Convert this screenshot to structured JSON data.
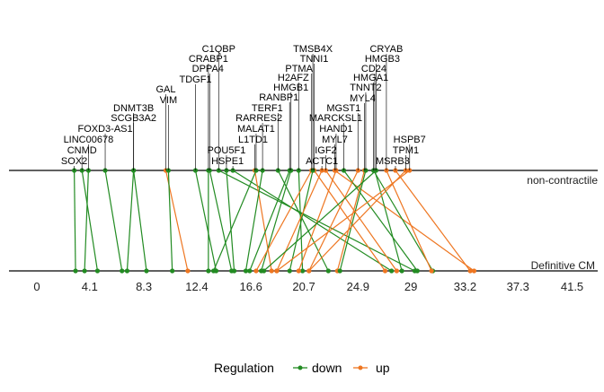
{
  "chart_data": {
    "type": "scatter",
    "title": "",
    "xlabel": "",
    "ylabel": "",
    "xlim": [
      0,
      44
    ],
    "x_ticks": [
      "0",
      "4.1",
      "8.3",
      "12.4",
      "16.6",
      "20.7",
      "24.9",
      "29",
      "33.2",
      "37.3",
      "41.5"
    ],
    "x_tick_values": [
      0,
      4.1,
      8.3,
      12.4,
      16.6,
      20.7,
      24.9,
      29,
      33.2,
      37.3,
      41.5
    ],
    "axes": [
      "non-contractile",
      "Definitive CM"
    ],
    "grid": false,
    "legend": {
      "title": "Regulation",
      "position": "bottom",
      "entries": [
        "down",
        "up"
      ]
    },
    "colors": {
      "down": "#228B22",
      "up": "#EE7621"
    },
    "genes": [
      {
        "name": "SOX2",
        "top": 2.9,
        "bottom": 3.0,
        "reg": "down"
      },
      {
        "name": "CNMD",
        "top": 3.5,
        "bottom": 4.7,
        "reg": "down"
      },
      {
        "name": "LINC00678",
        "top": 4.0,
        "bottom": 3.7,
        "reg": "down"
      },
      {
        "name": "FOXD3-AS1",
        "top": 5.3,
        "bottom": 6.6,
        "reg": "down"
      },
      {
        "name": "DNMT3B",
        "top": 7.5,
        "bottom": 7.0,
        "reg": "down"
      },
      {
        "name": "SCGB3A2",
        "top": 7.5,
        "bottom": 8.5,
        "reg": "down"
      },
      {
        "name": "GAL",
        "top": 10.0,
        "bottom": 11.7,
        "reg": "up"
      },
      {
        "name": "VIM",
        "top": 10.2,
        "bottom": 10.5,
        "reg": "down"
      },
      {
        "name": "TDGF1",
        "top": 12.3,
        "bottom": 13.9,
        "reg": "down"
      },
      {
        "name": "DPPA4",
        "top": 13.4,
        "bottom": 15.1,
        "reg": "down"
      },
      {
        "name": "CRABP1",
        "top": 13.3,
        "bottom": 13.3,
        "reg": "down"
      },
      {
        "name": "C1QBP",
        "top": 14.1,
        "bottom": 29.3,
        "reg": "down"
      },
      {
        "name": "POU5F1",
        "top": 14.7,
        "bottom": 15.3,
        "reg": "down"
      },
      {
        "name": "HSPE1",
        "top": 15.2,
        "bottom": 27.5,
        "reg": "down"
      },
      {
        "name": "L1TD1",
        "top": 16.9,
        "bottom": 18.2,
        "reg": "up"
      },
      {
        "name": "MALAT1",
        "top": 17.0,
        "bottom": 13.7,
        "reg": "down"
      },
      {
        "name": "RARRES2",
        "top": 17.5,
        "bottom": 16.2,
        "reg": "down"
      },
      {
        "name": "TERF1",
        "top": 18.7,
        "bottom": 22.6,
        "reg": "down"
      },
      {
        "name": "RANBP1",
        "top": 19.6,
        "bottom": 16.5,
        "reg": "down"
      },
      {
        "name": "HMGB1",
        "top": 19.7,
        "bottom": 17.4,
        "reg": "down"
      },
      {
        "name": "H2AFZ",
        "top": 20.3,
        "bottom": 20.6,
        "reg": "down"
      },
      {
        "name": "PTMA",
        "top": 21.3,
        "bottom": 17.0,
        "reg": "up"
      },
      {
        "name": "TNNI1",
        "top": 21.5,
        "bottom": 27.0,
        "reg": "up"
      },
      {
        "name": "TMSB4X",
        "top": 21.4,
        "bottom": 19.6,
        "reg": "down"
      },
      {
        "name": "ACTC1",
        "top": 22.1,
        "bottom": 18.6,
        "reg": "up"
      },
      {
        "name": "IGF2",
        "top": 22.4,
        "bottom": 27.9,
        "reg": "up"
      },
      {
        "name": "MYL7",
        "top": 23.1,
        "bottom": 33.9,
        "reg": "up"
      },
      {
        "name": "HAND1",
        "top": 23.2,
        "bottom": 20.3,
        "reg": "up"
      },
      {
        "name": "MARCKSL1",
        "top": 23.8,
        "bottom": 29.5,
        "reg": "down"
      },
      {
        "name": "MGST1",
        "top": 24.9,
        "bottom": 21.1,
        "reg": "up"
      },
      {
        "name": "MYL4",
        "top": 25.4,
        "bottom": 23.3,
        "reg": "up"
      },
      {
        "name": "TNNT2",
        "top": 25.5,
        "bottom": 23.5,
        "reg": "down"
      },
      {
        "name": "HMGA1",
        "top": 26.1,
        "bottom": 30.7,
        "reg": "down"
      },
      {
        "name": "CD24",
        "top": 26.2,
        "bottom": 28.3,
        "reg": "down"
      },
      {
        "name": "HMGB3",
        "top": 26.3,
        "bottom": 17.6,
        "reg": "down"
      },
      {
        "name": "CRYAB",
        "top": 27.1,
        "bottom": 30.6,
        "reg": "up"
      },
      {
        "name": "MSRB3",
        "top": 27.8,
        "bottom": 33.6,
        "reg": "up"
      },
      {
        "name": "TPM1",
        "top": 28.6,
        "bottom": 21.1,
        "reg": "up"
      },
      {
        "name": "HSPB7",
        "top": 28.9,
        "bottom": 18.6,
        "reg": "up"
      }
    ]
  }
}
